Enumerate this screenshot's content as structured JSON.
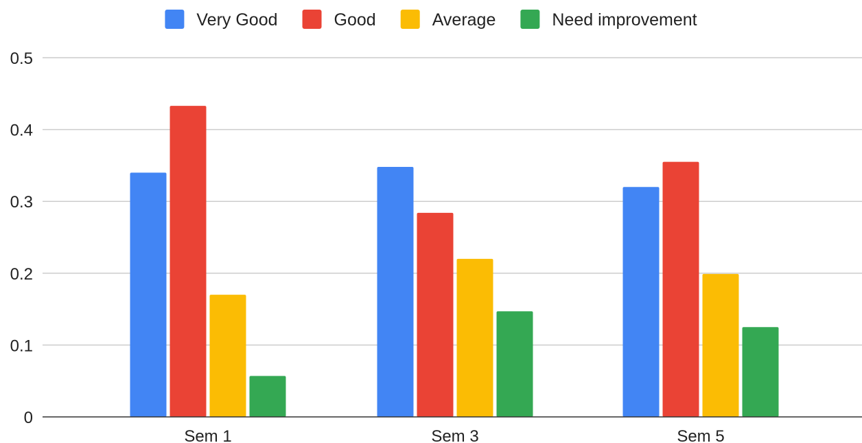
{
  "chart_data": {
    "type": "bar",
    "title": "",
    "xlabel": "",
    "ylabel": "",
    "categories": [
      "Sem 1",
      "Sem 3",
      "Sem 5"
    ],
    "series": [
      {
        "name": "Very Good",
        "color": "#4285F4",
        "values": [
          0.34,
          0.348,
          0.32
        ]
      },
      {
        "name": "Good",
        "color": "#EA4335",
        "values": [
          0.433,
          0.284,
          0.355
        ]
      },
      {
        "name": "Average",
        "color": "#FBBC04",
        "values": [
          0.17,
          0.22,
          0.199
        ]
      },
      {
        "name": "Need improvement",
        "color": "#34A853",
        "values": [
          0.057,
          0.147,
          0.125
        ]
      }
    ],
    "ylim": [
      0,
      0.5
    ],
    "yticks": [
      "0",
      "0.1",
      "0.2",
      "0.3",
      "0.4",
      "0.5"
    ],
    "yticks_values": [
      0,
      0.1,
      0.2,
      0.3,
      0.4,
      0.5
    ],
    "grid": true,
    "legend_position": "top-center"
  }
}
